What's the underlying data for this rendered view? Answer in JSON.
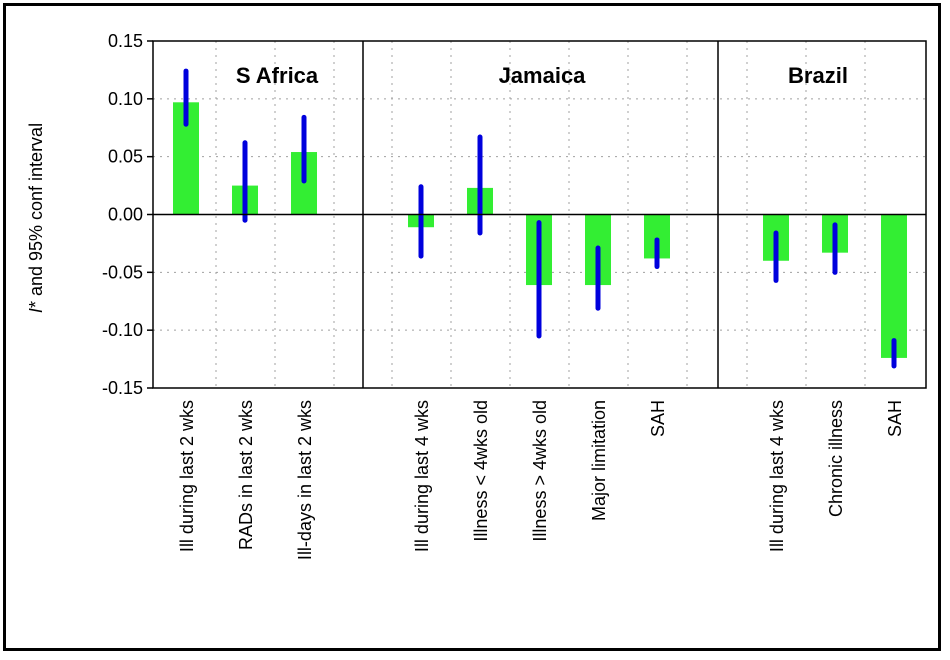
{
  "chart_data": {
    "type": "bar",
    "ylabel_prefix": "I",
    "ylabel_rest": "* and 95% conf interval",
    "ylim": [
      -0.15,
      0.15
    ],
    "yticks": [
      "-0.15",
      "-0.10",
      "-0.05",
      "0.00",
      "0.05",
      "0.10",
      "0.15"
    ],
    "ytick_values": [
      -0.15,
      -0.1,
      -0.05,
      0.0,
      0.05,
      0.1,
      0.15
    ],
    "grid": true,
    "colors": {
      "bar": "#33ee33",
      "ci": "#0000dd"
    },
    "groups": [
      {
        "name": "S Africa",
        "items": [
          {
            "label": "Ill during last 2 wks",
            "value": 0.097,
            "ci_low": 0.078,
            "ci_high": 0.124
          },
          {
            "label": "RADs in last 2 wks",
            "value": 0.025,
            "ci_low": -0.005,
            "ci_high": 0.062
          },
          {
            "label": "Ill-days in last 2 wks",
            "value": 0.054,
            "ci_low": 0.029,
            "ci_high": 0.084
          }
        ]
      },
      {
        "name": "Jamaica",
        "items": [
          {
            "label": "Ill during last 4 wks",
            "value": -0.011,
            "ci_low": -0.036,
            "ci_high": 0.024
          },
          {
            "label": "Illness < 4wks old",
            "value": 0.023,
            "ci_low": -0.016,
            "ci_high": 0.067
          },
          {
            "label": "Illness > 4wks old",
            "value": -0.061,
            "ci_low": -0.105,
            "ci_high": -0.007
          },
          {
            "label": "Major limitation",
            "value": -0.061,
            "ci_low": -0.081,
            "ci_high": -0.029
          },
          {
            "label": "SAH",
            "value": -0.038,
            "ci_low": -0.045,
            "ci_high": -0.022
          }
        ]
      },
      {
        "name": "Brazil",
        "items": [
          {
            "label": "Ill during last 4 wks",
            "value": -0.04,
            "ci_low": -0.057,
            "ci_high": -0.016
          },
          {
            "label": "Chronic illness",
            "value": -0.033,
            "ci_low": -0.05,
            "ci_high": -0.009
          },
          {
            "label": "SAH",
            "value": -0.124,
            "ci_low": -0.131,
            "ci_high": -0.109
          }
        ]
      }
    ]
  }
}
